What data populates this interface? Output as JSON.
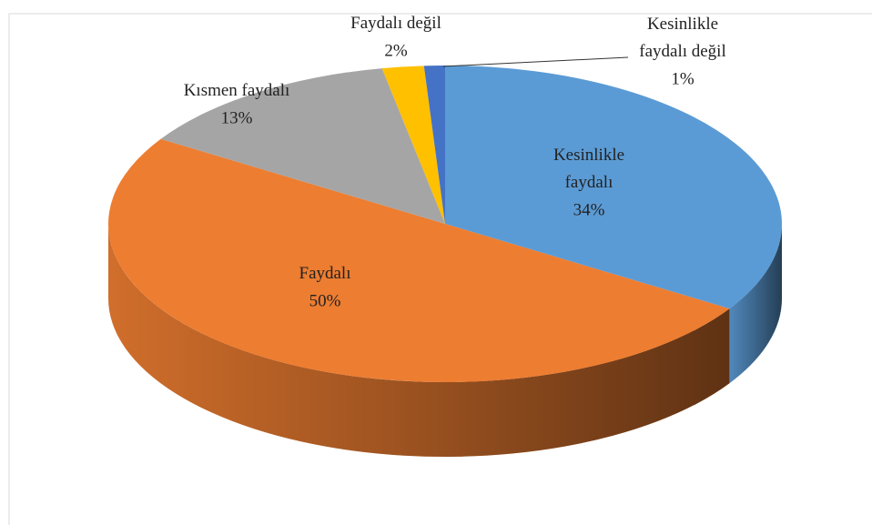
{
  "chart_data": {
    "type": "pie",
    "categories": [
      "Kesinlikle faydalı",
      "Faydalı",
      "Kısmen faydalı",
      "Faydalı değil",
      "Kesinlikle faydalı değil"
    ],
    "values": [
      34,
      50,
      13,
      2,
      1
    ],
    "value_labels": [
      "34%",
      "50%",
      "13%",
      "2%",
      "1%"
    ],
    "colors": [
      "#5b9bd5",
      "#ed7d31",
      "#a5a5a5",
      "#ffc000",
      "#4472c4"
    ]
  }
}
